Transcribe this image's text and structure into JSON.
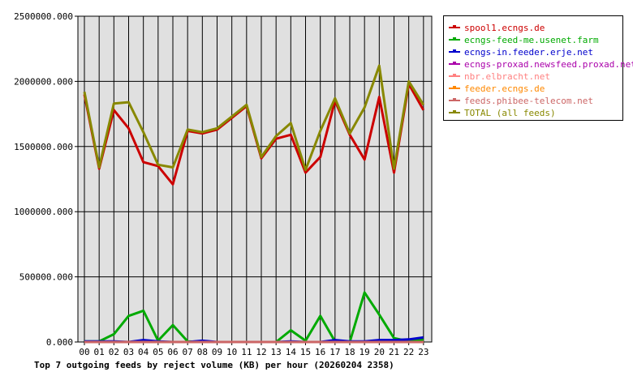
{
  "chart_data": {
    "type": "line",
    "title": "Top 7 outgoing feeds by reject volume (KB) per hour (20260204 2358)",
    "xlabel": "",
    "ylabel": "",
    "categories": [
      "00",
      "01",
      "02",
      "03",
      "04",
      "05",
      "06",
      "07",
      "08",
      "09",
      "10",
      "11",
      "12",
      "13",
      "14",
      "15",
      "16",
      "17",
      "18",
      "19",
      "20",
      "21",
      "22",
      "23"
    ],
    "y_ticks": [
      "0.000",
      "500000.000",
      "1000000.000",
      "1500000.000",
      "2000000.000",
      "2500000.000"
    ],
    "ylim": [
      0,
      2500000
    ],
    "grid": true,
    "legend_position": "top-right",
    "series": [
      {
        "name": "spool1.ecngs.de",
        "color": "#cc0000",
        "values": [
          1900000,
          1330000,
          1780000,
          1640000,
          1380000,
          1350000,
          1210000,
          1620000,
          1600000,
          1630000,
          1720000,
          1810000,
          1410000,
          1560000,
          1590000,
          1300000,
          1420000,
          1850000,
          1590000,
          1400000,
          1880000,
          1300000,
          1980000,
          1780000
        ]
      },
      {
        "name": "ecngs-feed-me.usenet.farm",
        "color": "#00aa00",
        "values": [
          5000,
          5000,
          60000,
          200000,
          240000,
          10000,
          130000,
          5000,
          0,
          0,
          0,
          0,
          0,
          0,
          90000,
          10000,
          200000,
          5000,
          0,
          380000,
          210000,
          30000,
          5000,
          20000
        ]
      },
      {
        "name": "ecngs-in.feeder.erje.net",
        "color": "#0000cc",
        "values": [
          5000,
          5000,
          5000,
          0,
          15000,
          5000,
          0,
          0,
          10000,
          0,
          0,
          0,
          0,
          0,
          5000,
          0,
          0,
          15000,
          5000,
          5000,
          15000,
          15000,
          20000,
          35000
        ]
      },
      {
        "name": "ecngs-proxad.newsfeed.proxad.net",
        "color": "#aa00aa",
        "values": [
          0,
          0,
          0,
          0,
          0,
          0,
          0,
          0,
          0,
          0,
          0,
          0,
          0,
          0,
          0,
          0,
          0,
          0,
          0,
          0,
          0,
          0,
          0,
          0
        ]
      },
      {
        "name": "nbr.elbracht.net",
        "color": "#ff8080",
        "values": [
          0,
          0,
          0,
          0,
          0,
          0,
          0,
          0,
          0,
          0,
          0,
          0,
          0,
          0,
          0,
          0,
          0,
          0,
          0,
          0,
          0,
          0,
          0,
          0
        ]
      },
      {
        "name": "feeder.ecngs.de",
        "color": "#ff8800",
        "values": [
          0,
          0,
          0,
          0,
          0,
          0,
          0,
          0,
          0,
          0,
          0,
          0,
          0,
          0,
          0,
          0,
          0,
          0,
          0,
          0,
          0,
          0,
          0,
          0
        ]
      },
      {
        "name": "feeds.phibee-telecom.net",
        "color": "#cc6666",
        "values": [
          0,
          0,
          0,
          0,
          0,
          0,
          0,
          0,
          0,
          0,
          0,
          0,
          0,
          0,
          0,
          0,
          0,
          0,
          0,
          0,
          0,
          0,
          0,
          0
        ]
      },
      {
        "name": "TOTAL (all feeds)",
        "color": "#888800",
        "values": [
          1920000,
          1340000,
          1830000,
          1840000,
          1610000,
          1360000,
          1340000,
          1630000,
          1610000,
          1640000,
          1730000,
          1820000,
          1420000,
          1580000,
          1680000,
          1320000,
          1620000,
          1870000,
          1600000,
          1800000,
          2120000,
          1330000,
          2000000,
          1820000
        ]
      }
    ]
  }
}
